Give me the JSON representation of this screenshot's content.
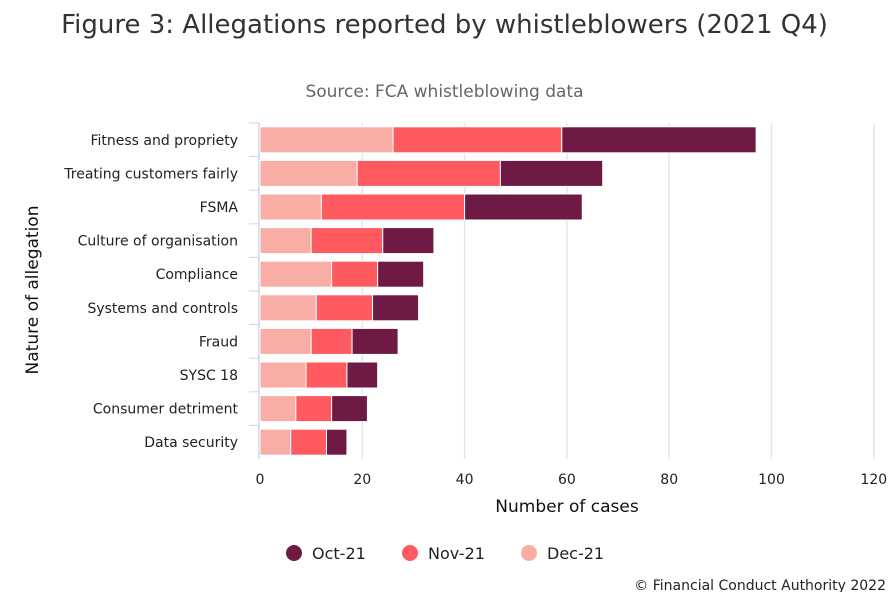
{
  "chart_data": {
    "type": "bar",
    "orientation": "horizontal",
    "stacked": true,
    "title": "Figure 3: Allegations reported by whistleblowers (2021 Q4)",
    "subtitle": "Source: FCA whistleblowing data",
    "xlabel": "Number of cases",
    "ylabel": "Nature of allegation",
    "xlim": [
      0,
      120
    ],
    "xticks": [
      0,
      20,
      40,
      60,
      80,
      100,
      120
    ],
    "grid": true,
    "legend_position": "bottom",
    "categories": [
      "Fitness and propriety",
      "Treating customers fairly",
      "FSMA",
      "Culture of organisation",
      "Compliance",
      "Systems and controls",
      "Fraud",
      "SYSC 18",
      "Consumer detriment",
      "Data security"
    ],
    "series": [
      {
        "name": "Dec-21",
        "color": "#f8aea5",
        "values": [
          26,
          19,
          12,
          10,
          14,
          11,
          10,
          9,
          7,
          6
        ]
      },
      {
        "name": "Nov-21",
        "color": "#ff5a5f",
        "values": [
          33,
          28,
          28,
          14,
          9,
          11,
          8,
          8,
          7,
          7
        ]
      },
      {
        "name": "Oct-21",
        "color": "#6e1a45",
        "values": [
          38,
          20,
          23,
          10,
          9,
          9,
          9,
          6,
          7,
          4
        ]
      }
    ],
    "legend_order": [
      "Oct-21",
      "Nov-21",
      "Dec-21"
    ]
  },
  "footer": {
    "copyright": "© Financial Conduct Authority 2022"
  }
}
